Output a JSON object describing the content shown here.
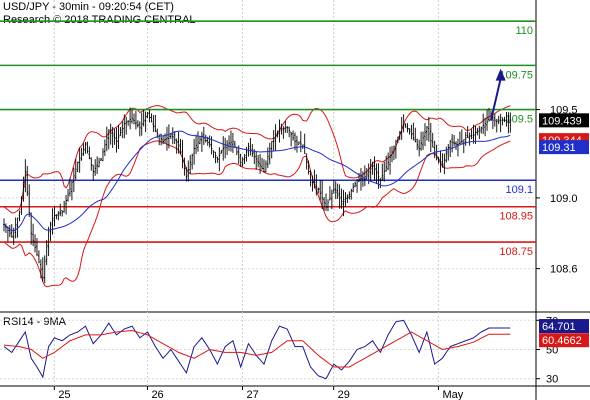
{
  "header": {
    "line1": "USD/JPY - 30min - 09:20:54 (CET)",
    "line2": "Research © 2018 TRADING CENTRAL"
  },
  "chart_data": [
    {
      "type": "candlestick",
      "title": "USD/JPY - 30min - 09:20:54 (CET)",
      "ylim": [
        108.36,
        110.12
      ],
      "y_ticks": [
        108.6,
        109.0,
        109.5
      ],
      "y_tick_labels": [
        "108.6",
        "109.0",
        "109.5"
      ],
      "x_ticks": [
        {
          "label": "25",
          "bar": 28
        },
        {
          "label": "26",
          "bar": 76
        },
        {
          "label": "27",
          "bar": 125
        },
        {
          "label": "29",
          "bar": 172
        },
        {
          "label": "May",
          "bar": 226
        }
      ],
      "levels": [
        {
          "value": 110.0,
          "label": "110",
          "color": "#1f8f1f"
        },
        {
          "value": 109.75,
          "label": "109.75",
          "color": "#1f8f1f"
        },
        {
          "value": 109.5,
          "label": "109.5",
          "color": "#1f8f1f"
        },
        {
          "value": 109.1,
          "label": "109.1",
          "color": "#1f2fc8"
        },
        {
          "value": 108.95,
          "label": "108.95",
          "color": "#d81818"
        },
        {
          "value": 108.75,
          "label": "108.75",
          "color": "#d81818"
        }
      ],
      "price_tags": [
        {
          "value": 109.439,
          "label": "109.439",
          "color": "#000000"
        },
        {
          "value": 109.344,
          "label": "109.344",
          "color": "#d81818"
        },
        {
          "value": 109.31,
          "label": "109.31",
          "color": "#1f2fc8"
        }
      ],
      "close_anchors": [
        [
          0,
          108.85
        ],
        [
          4,
          108.78
        ],
        [
          8,
          108.92
        ],
        [
          11,
          109.15
        ],
        [
          14,
          108.8
        ],
        [
          17,
          108.68
        ],
        [
          20,
          108.55
        ],
        [
          23,
          108.82
        ],
        [
          26,
          108.9
        ],
        [
          30,
          108.92
        ],
        [
          34,
          109.05
        ],
        [
          38,
          109.2
        ],
        [
          42,
          109.3
        ],
        [
          46,
          109.15
        ],
        [
          50,
          109.22
        ],
        [
          54,
          109.38
        ],
        [
          58,
          109.32
        ],
        [
          62,
          109.42
        ],
        [
          66,
          109.45
        ],
        [
          70,
          109.4
        ],
        [
          74,
          109.48
        ],
        [
          78,
          109.38
        ],
        [
          82,
          109.32
        ],
        [
          86,
          109.36
        ],
        [
          90,
          109.3
        ],
        [
          94,
          109.12
        ],
        [
          98,
          109.28
        ],
        [
          102,
          109.35
        ],
        [
          106,
          109.3
        ],
        [
          110,
          109.22
        ],
        [
          114,
          109.3
        ],
        [
          118,
          109.32
        ],
        [
          122,
          109.2
        ],
        [
          126,
          109.28
        ],
        [
          130,
          109.22
        ],
        [
          134,
          109.15
        ],
        [
          138,
          109.32
        ],
        [
          142,
          109.38
        ],
        [
          146,
          109.4
        ],
        [
          150,
          109.32
        ],
        [
          154,
          109.3
        ],
        [
          158,
          109.1
        ],
        [
          162,
          109.05
        ],
        [
          166,
          108.95
        ],
        [
          170,
          109.05
        ],
        [
          174,
          108.98
        ],
        [
          178,
          109.02
        ],
        [
          182,
          109.1
        ],
        [
          186,
          109.12
        ],
        [
          190,
          109.18
        ],
        [
          194,
          109.1
        ],
        [
          198,
          109.2
        ],
        [
          202,
          109.32
        ],
        [
          206,
          109.42
        ],
        [
          210,
          109.36
        ],
        [
          214,
          109.28
        ],
        [
          218,
          109.4
        ],
        [
          222,
          109.25
        ],
        [
          226,
          109.18
        ],
        [
          230,
          109.32
        ],
        [
          234,
          109.3
        ],
        [
          238,
          109.34
        ],
        [
          242,
          109.36
        ],
        [
          246,
          109.4
        ],
        [
          250,
          109.44
        ]
      ],
      "projection": {
        "from": [
          250,
          109.44
        ],
        "to": [
          256,
          109.72
        ]
      }
    },
    {
      "type": "line",
      "title": "RSI14 - 9MA",
      "ylim": [
        25,
        75
      ],
      "y_ticks": [
        30,
        50,
        70
      ],
      "y_tick_labels": [
        "30",
        "50",
        "70"
      ],
      "series": [
        {
          "name": "RSI14",
          "color": "#1a1a8c",
          "anchors": [
            [
              0,
              52
            ],
            [
              4,
              48
            ],
            [
              8,
              56
            ],
            [
              11,
              62
            ],
            [
              14,
              44
            ],
            [
              17,
              38
            ],
            [
              20,
              31
            ],
            [
              23,
              52
            ],
            [
              26,
              58
            ],
            [
              30,
              56
            ],
            [
              34,
              60
            ],
            [
              38,
              62
            ],
            [
              42,
              66
            ],
            [
              46,
              54
            ],
            [
              50,
              60
            ],
            [
              54,
              68
            ],
            [
              58,
              60
            ],
            [
              62,
              64
            ],
            [
              66,
              66
            ],
            [
              70,
              58
            ],
            [
              74,
              62
            ],
            [
              78,
              52
            ],
            [
              82,
              44
            ],
            [
              86,
              50
            ],
            [
              90,
              42
            ],
            [
              94,
              34
            ],
            [
              98,
              52
            ],
            [
              102,
              58
            ],
            [
              106,
              50
            ],
            [
              110,
              40
            ],
            [
              114,
              52
            ],
            [
              118,
              56
            ],
            [
              122,
              38
            ],
            [
              126,
              54
            ],
            [
              130,
              46
            ],
            [
              134,
              40
            ],
            [
              138,
              56
            ],
            [
              142,
              66
            ],
            [
              146,
              64
            ],
            [
              150,
              52
            ],
            [
              154,
              52
            ],
            [
              158,
              38
            ],
            [
              162,
              32
            ],
            [
              166,
              30
            ],
            [
              170,
              40
            ],
            [
              174,
              36
            ],
            [
              178,
              42
            ],
            [
              182,
              50
            ],
            [
              186,
              52
            ],
            [
              190,
              56
            ],
            [
              194,
              48
            ],
            [
              198,
              60
            ],
            [
              202,
              69
            ],
            [
              206,
              70
            ],
            [
              210,
              60
            ],
            [
              214,
              48
            ],
            [
              218,
              62
            ],
            [
              222,
              40
            ],
            [
              226,
              44
            ],
            [
              230,
              52
            ],
            [
              234,
              54
            ],
            [
              238,
              56
            ],
            [
              242,
              58
            ],
            [
              246,
              62
            ],
            [
              250,
              64.7
            ]
          ]
        },
        {
          "name": "9MA",
          "color": "#d81818",
          "anchors": [
            [
              0,
              53
            ],
            [
              8,
              52
            ],
            [
              14,
              50
            ],
            [
              20,
              44
            ],
            [
              26,
              48
            ],
            [
              34,
              56
            ],
            [
              42,
              60
            ],
            [
              50,
              60
            ],
            [
              58,
              62
            ],
            [
              66,
              63
            ],
            [
              74,
              60
            ],
            [
              82,
              54
            ],
            [
              90,
              48
            ],
            [
              98,
              44
            ],
            [
              106,
              50
            ],
            [
              114,
              48
            ],
            [
              122,
              48
            ],
            [
              130,
              46
            ],
            [
              138,
              48
            ],
            [
              146,
              56
            ],
            [
              154,
              56
            ],
            [
              162,
              46
            ],
            [
              170,
              38
            ],
            [
              178,
              38
            ],
            [
              186,
              44
            ],
            [
              194,
              50
            ],
            [
              202,
              56
            ],
            [
              210,
              62
            ],
            [
              218,
              56
            ],
            [
              226,
              50
            ],
            [
              234,
              52
            ],
            [
              242,
              55
            ],
            [
              250,
              60.5
            ]
          ]
        }
      ],
      "price_tags": [
        {
          "value": 64.701,
          "label": "64.701",
          "color": "#1a1a8c"
        },
        {
          "value": 60.4662,
          "label": "60.4662",
          "color": "#d81818"
        }
      ]
    }
  ]
}
